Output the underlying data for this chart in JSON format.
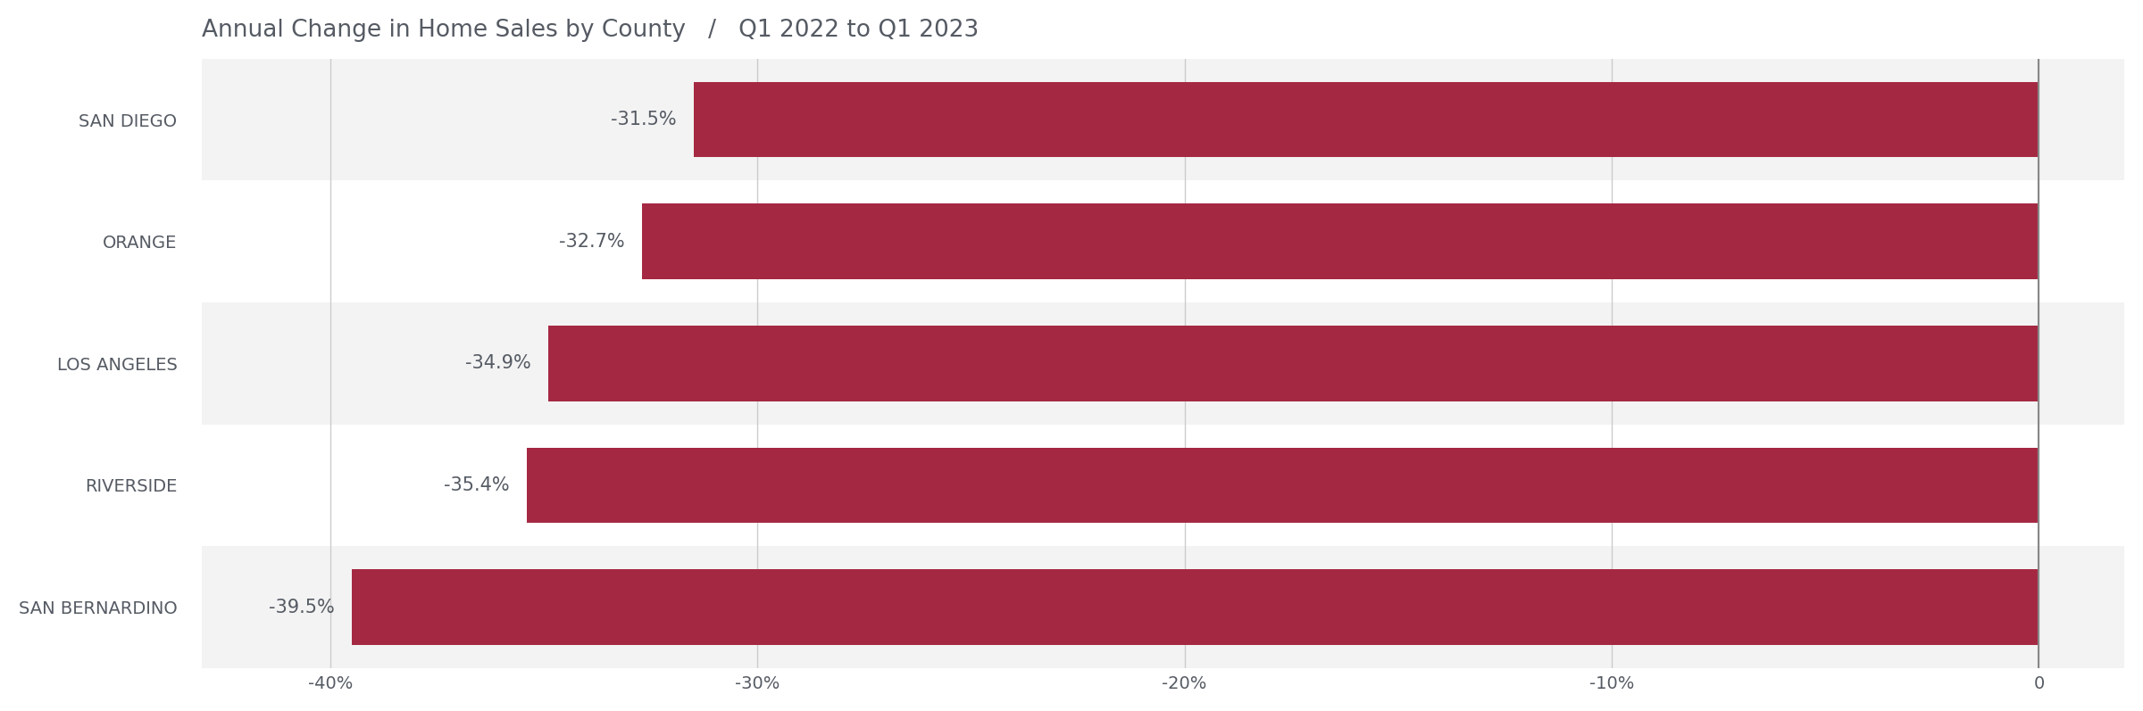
{
  "title": "Annual Change in Home Sales by County   /   Q1 2022 to Q1 2023",
  "categories": [
    "SAN DIEGO",
    "ORANGE",
    "LOS ANGELES",
    "RIVERSIDE",
    "SAN BERNARDINO"
  ],
  "values": [
    -31.5,
    -32.7,
    -34.9,
    -35.4,
    -39.5
  ],
  "bar_color": "#a52842",
  "label_color": "#555a63",
  "title_color": "#555a63",
  "background_color": "#ffffff",
  "row_shaded_color": "#f3f3f3",
  "row_plain_color": "#ffffff",
  "gridline_color": "#cccccc",
  "spine_color": "#888888",
  "xlim": [
    -43,
    2
  ],
  "xticks": [
    -40,
    -30,
    -20,
    -10,
    0
  ],
  "xtick_labels": [
    "-40%",
    "-30%",
    "-20%",
    "-10%",
    "0"
  ],
  "bar_height": 0.62,
  "value_label_fontsize": 15,
  "ytick_fontsize": 14,
  "xtick_fontsize": 14,
  "title_fontsize": 19,
  "shaded_rows": [
    0,
    2,
    4
  ]
}
